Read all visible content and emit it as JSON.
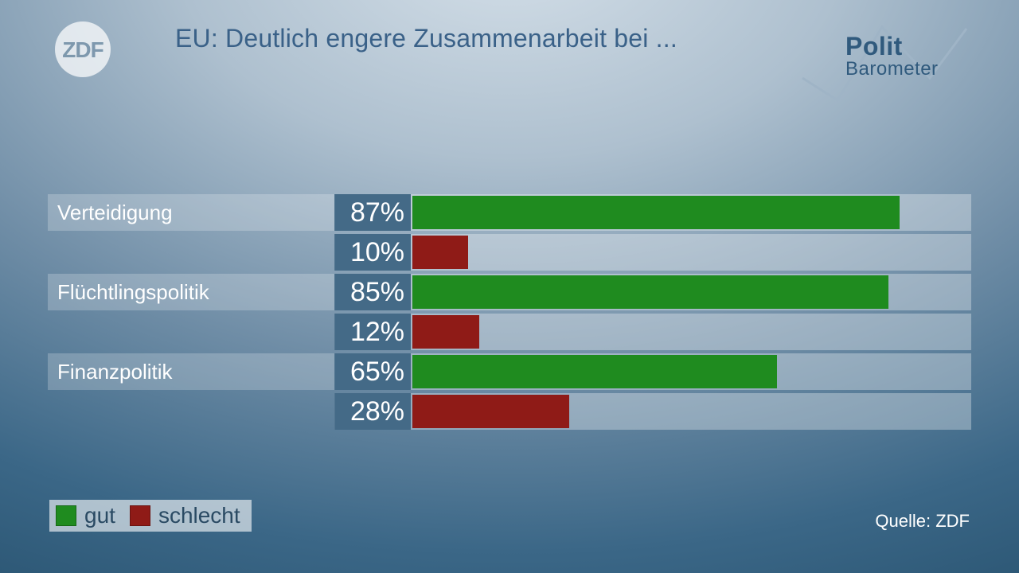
{
  "title": {
    "text": "EU: Deutlich engere Zusammenarbeit bei ...",
    "color": "#3a6188"
  },
  "logo": {
    "name": "ZDF",
    "circle_color": "#ffffff",
    "text_color": "#7a95ab"
  },
  "politbarometer": {
    "line1": "Polit",
    "line2": "Barometer",
    "text_color": "#305a7d",
    "stroke_color": "#9fb4c6"
  },
  "chart": {
    "max_value": 100,
    "bar_track_color": "rgba(255,255,255,0.32)",
    "value_box_bg": "#446a87",
    "colors": {
      "good": "#1f8b1f",
      "bad": "#8f1b17"
    },
    "groups": [
      {
        "label": "Verteidigung",
        "good": 87,
        "bad": 10
      },
      {
        "label": "Flüchtlingspolitik",
        "good": 85,
        "bad": 12
      },
      {
        "label": "Finanzpolitik",
        "good": 65,
        "bad": 28
      }
    ]
  },
  "legend": {
    "good_label": "gut",
    "bad_label": "schlecht",
    "text_color": "#2a4a63"
  },
  "source": {
    "prefix": "Quelle: ",
    "name": "ZDF"
  }
}
